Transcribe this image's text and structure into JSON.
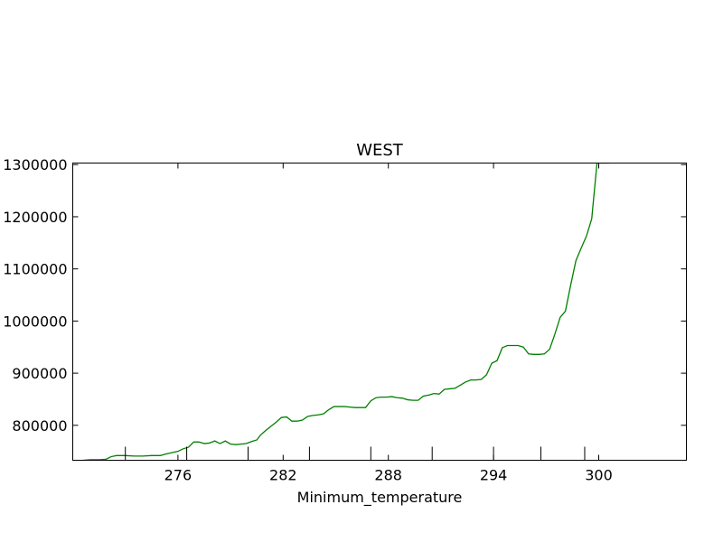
{
  "chart_data": {
    "type": "line",
    "title": "WEST",
    "xlabel": "Minimum_temperature",
    "ylabel": "",
    "xlim": [
      270.0,
      305.0
    ],
    "ylim": [
      733000,
      1303000
    ],
    "xticks": [
      276,
      282,
      288,
      294,
      300
    ],
    "yticks": [
      800000,
      900000,
      1000000,
      1100000,
      1200000,
      1300000
    ],
    "minor_xticks": [
      273.0,
      276.5,
      280.0,
      283.5,
      287.0,
      290.5,
      294.0,
      296.7,
      299.2
    ],
    "grid": false,
    "series": [
      {
        "color": "#008000",
        "x": [
          270.6,
          271.0,
          271.5,
          271.9,
          272.2,
          272.5,
          273.0,
          273.5,
          274.0,
          274.5,
          275.0,
          275.3,
          275.7,
          276.0,
          276.3,
          276.6,
          276.9,
          277.2,
          277.5,
          277.8,
          278.1,
          278.4,
          278.7,
          279.0,
          279.3,
          279.6,
          279.9,
          280.2,
          280.5,
          280.7,
          281.0,
          281.3,
          281.6,
          281.9,
          282.2,
          282.5,
          282.8,
          283.1,
          283.4,
          283.7,
          284.0,
          284.3,
          284.6,
          284.9,
          285.2,
          285.5,
          285.8,
          286.1,
          286.4,
          286.7,
          287.0,
          287.3,
          287.6,
          287.9,
          288.2,
          288.5,
          288.8,
          289.1,
          289.4,
          289.7,
          290.0,
          290.3,
          290.6,
          290.9,
          291.2,
          291.5,
          291.8,
          292.1,
          292.4,
          292.7,
          293.0,
          293.3,
          293.6,
          293.9,
          294.2,
          294.5,
          294.8,
          295.1,
          295.4,
          295.7,
          296.0,
          296.3,
          296.6,
          296.9,
          297.2,
          297.5,
          297.8,
          298.1,
          298.4,
          298.7,
          299.0,
          299.3,
          299.6,
          299.9,
          300.3,
          300.6
        ],
        "y": [
          733000,
          734000,
          734000,
          735000,
          740000,
          742000,
          742000,
          741000,
          741000,
          742000,
          742000,
          745000,
          748000,
          750000,
          755000,
          758000,
          768000,
          768000,
          765000,
          766000,
          770000,
          765000,
          770000,
          764000,
          763000,
          764000,
          765000,
          769000,
          772000,
          781000,
          790000,
          798000,
          806000,
          815000,
          816000,
          808000,
          808000,
          810000,
          817000,
          819000,
          820000,
          822000,
          830000,
          836000,
          836000,
          836000,
          835000,
          834000,
          834000,
          834000,
          847000,
          853000,
          854000,
          854000,
          855000,
          853000,
          852000,
          849000,
          848000,
          848000,
          856000,
          858000,
          861000,
          860000,
          869000,
          870000,
          871000,
          877000,
          883000,
          887000,
          887000,
          888000,
          897000,
          919000,
          924000,
          949000,
          953000,
          953000,
          953000,
          950000,
          937000,
          936000,
          936000,
          937000,
          946000,
          975000,
          1007000,
          1019000,
          1069000,
          1116000,
          1140000,
          1163000,
          1196000,
          1303000,
          1303000,
          1303000
        ]
      }
    ]
  }
}
